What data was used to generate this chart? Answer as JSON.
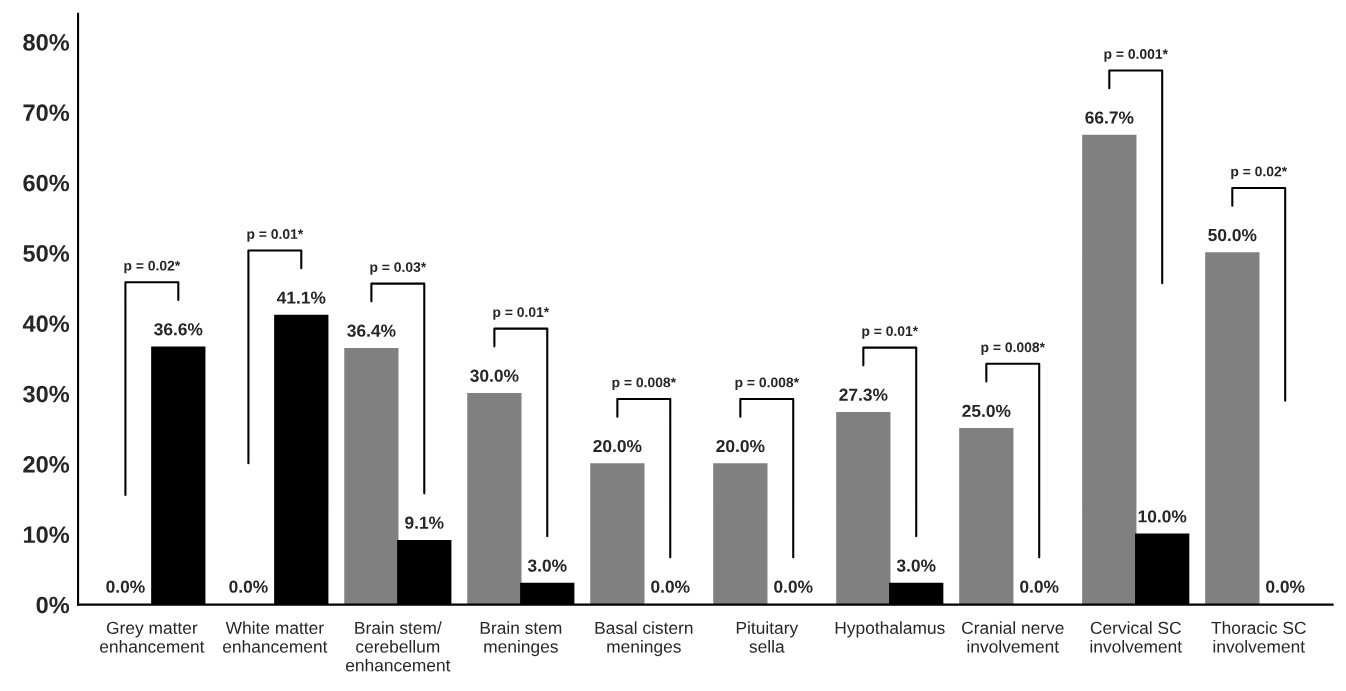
{
  "chart_data": {
    "type": "bar",
    "categories": [
      "Grey matter\nenhancement",
      "White matter\nenhancement",
      "Brain stem/\ncerebellum\nenhancement",
      "Brain stem\nmeninges",
      "Basal cistern\nmeninges",
      "Pituitary\nsella",
      "Hypothalamus",
      "Cranial nerve\ninvolvement",
      "Cervical SC\ninvolvement",
      "Thoracic SC\ninvolvement"
    ],
    "series": [
      {
        "color": "#808080",
        "values": [
          0.0,
          0.0,
          36.4,
          30.0,
          20.0,
          20.0,
          27.3,
          25.0,
          66.7,
          50.0
        ],
        "value_labels": [
          "0.0%",
          "0.0%",
          "36.4%",
          "30.0%",
          "20.0%",
          "20.0%",
          "27.3%",
          "25.0%",
          "66.7%",
          "50.0%"
        ]
      },
      {
        "color": "#000000",
        "values": [
          36.6,
          41.1,
          9.1,
          3.0,
          0.0,
          0.0,
          3.0,
          0.0,
          10.0,
          0.0
        ],
        "value_labels": [
          "36.6%",
          "41.1%",
          "9.1%",
          "3.0%",
          "0.0%",
          "0.0%",
          "3.0%",
          "0.0%",
          "10.0%",
          "0.0%"
        ]
      }
    ],
    "ylim": [
      0,
      84
    ],
    "yticks": [
      {
        "value": 0,
        "label": "0%"
      },
      {
        "value": 10,
        "label": "10%"
      },
      {
        "value": 20,
        "label": "20%"
      },
      {
        "value": 30,
        "label": "30%"
      },
      {
        "value": 40,
        "label": "40%"
      },
      {
        "value": 50,
        "label": "50%"
      },
      {
        "value": 60,
        "label": "60%"
      },
      {
        "value": 70,
        "label": "70%"
      },
      {
        "value": 80,
        "label": "80%"
      }
    ],
    "grid": false,
    "annotations": [
      "p = 0.02*",
      "p = 0.01*",
      "p = 0.03*",
      "p = 0.01*",
      "p = 0.008*",
      "p = 0.008*",
      "p = 0.01*",
      "p = 0.008*",
      "p = 0.001*",
      "p = 0.02*"
    ]
  }
}
